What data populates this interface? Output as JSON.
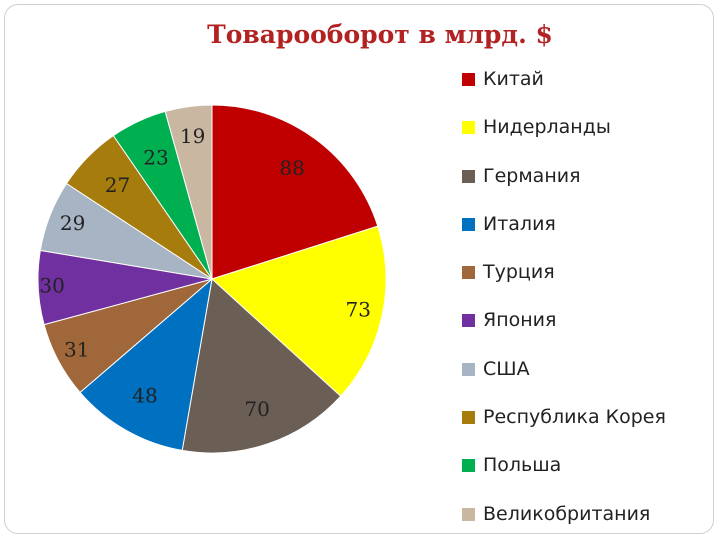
{
  "chart_data": {
    "type": "pie",
    "title": "Товарооборот в млрд. $",
    "legend_position": "right",
    "series": [
      {
        "name": "Китай",
        "value": 88,
        "color": "#c00000"
      },
      {
        "name": "Нидерланды",
        "value": 73,
        "color": "#ffff00"
      },
      {
        "name": "Германия",
        "value": 70,
        "color": "#6b5e55"
      },
      {
        "name": "Италия",
        "value": 48,
        "color": "#0070c0"
      },
      {
        "name": "Турция",
        "value": 31,
        "color": "#a0673a"
      },
      {
        "name": "Япония",
        "value": 30,
        "color": "#7030a0"
      },
      {
        "name": "США",
        "value": 29,
        "color": "#a6b4c3"
      },
      {
        "name": "Республика Корея",
        "value": 27,
        "color": "#a67c0c"
      },
      {
        "name": "Польша",
        "value": 23,
        "color": "#00b050"
      },
      {
        "name": "Великобритания",
        "value": 19,
        "color": "#c9b7a2"
      }
    ]
  }
}
